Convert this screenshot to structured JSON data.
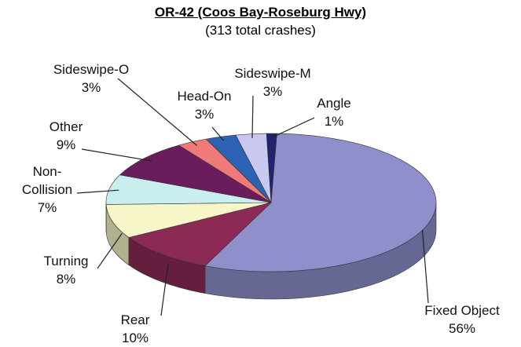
{
  "chart_data": {
    "type": "pie",
    "title": "OR-42 (Coos Bay-Roseburg Hwy)",
    "subtitle": "(313 total crashes)",
    "categories": [
      "Fixed Object",
      "Rear",
      "Turning",
      "Non-Collision",
      "Other",
      "Sideswipe-O",
      "Head-On",
      "Sideswipe-M",
      "Angle"
    ],
    "values": [
      56,
      10,
      8,
      7,
      9,
      3,
      3,
      3,
      1
    ],
    "value_labels": [
      "56%",
      "10%",
      "8%",
      "7%",
      "9%",
      "3%",
      "3%",
      "3%",
      "1%"
    ],
    "colors": [
      "#8f8fcc",
      "#8c2a55",
      "#f6f6c8",
      "#c8eef0",
      "#6a1c5c",
      "#f07a78",
      "#2c62b4",
      "#c8c8f0",
      "#22226e"
    ]
  }
}
